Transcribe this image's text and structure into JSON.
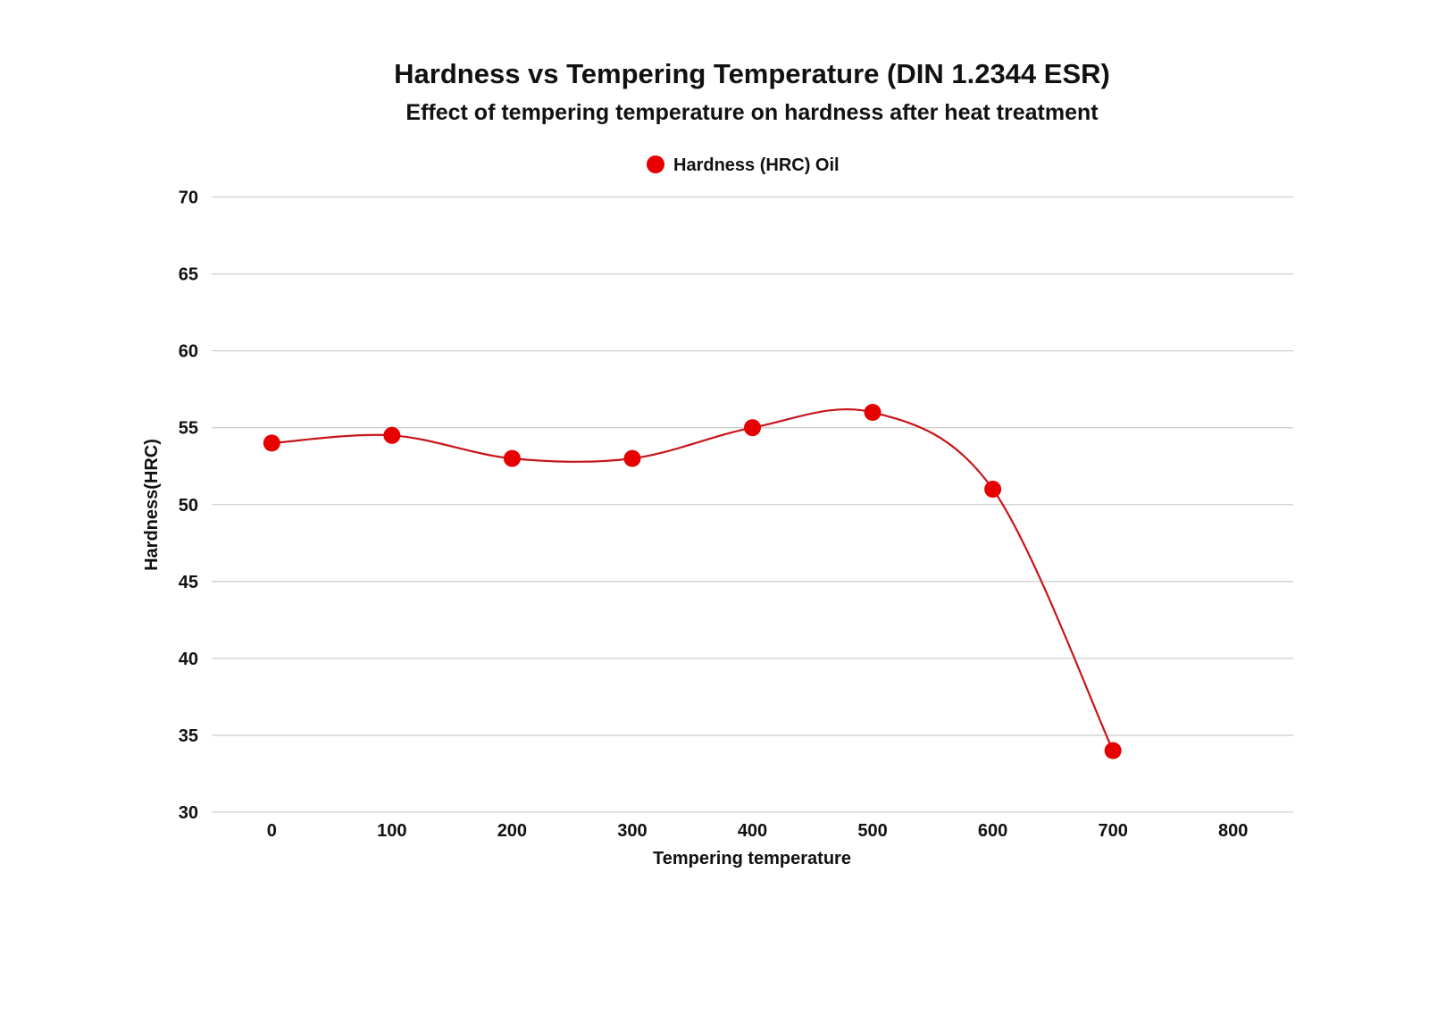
{
  "chart_data": {
    "type": "line",
    "title": "Hardness vs Tempering Temperature (DIN 1.2344 ESR)",
    "subtitle": "Effect of tempering temperature on hardness after heat treatment",
    "xlabel": "Tempering temperature",
    "ylabel": "Hardness(HRC)",
    "xlim": [
      -50,
      850
    ],
    "ylim": [
      30,
      70
    ],
    "x_ticks": [
      0,
      100,
      200,
      300,
      400,
      500,
      600,
      700,
      800
    ],
    "y_ticks": [
      30,
      35,
      40,
      45,
      50,
      55,
      60,
      65,
      70
    ],
    "grid": "horizontal",
    "legend_position": "top-center",
    "smooth": true,
    "series": [
      {
        "name": "Hardness (HRC) Oil",
        "color": "#e60000",
        "line_color": "#c8141a",
        "x": [
          0,
          100,
          200,
          300,
          400,
          500,
          600,
          700
        ],
        "y": [
          54,
          54.5,
          53,
          53,
          55,
          56,
          51,
          34
        ]
      }
    ]
  }
}
